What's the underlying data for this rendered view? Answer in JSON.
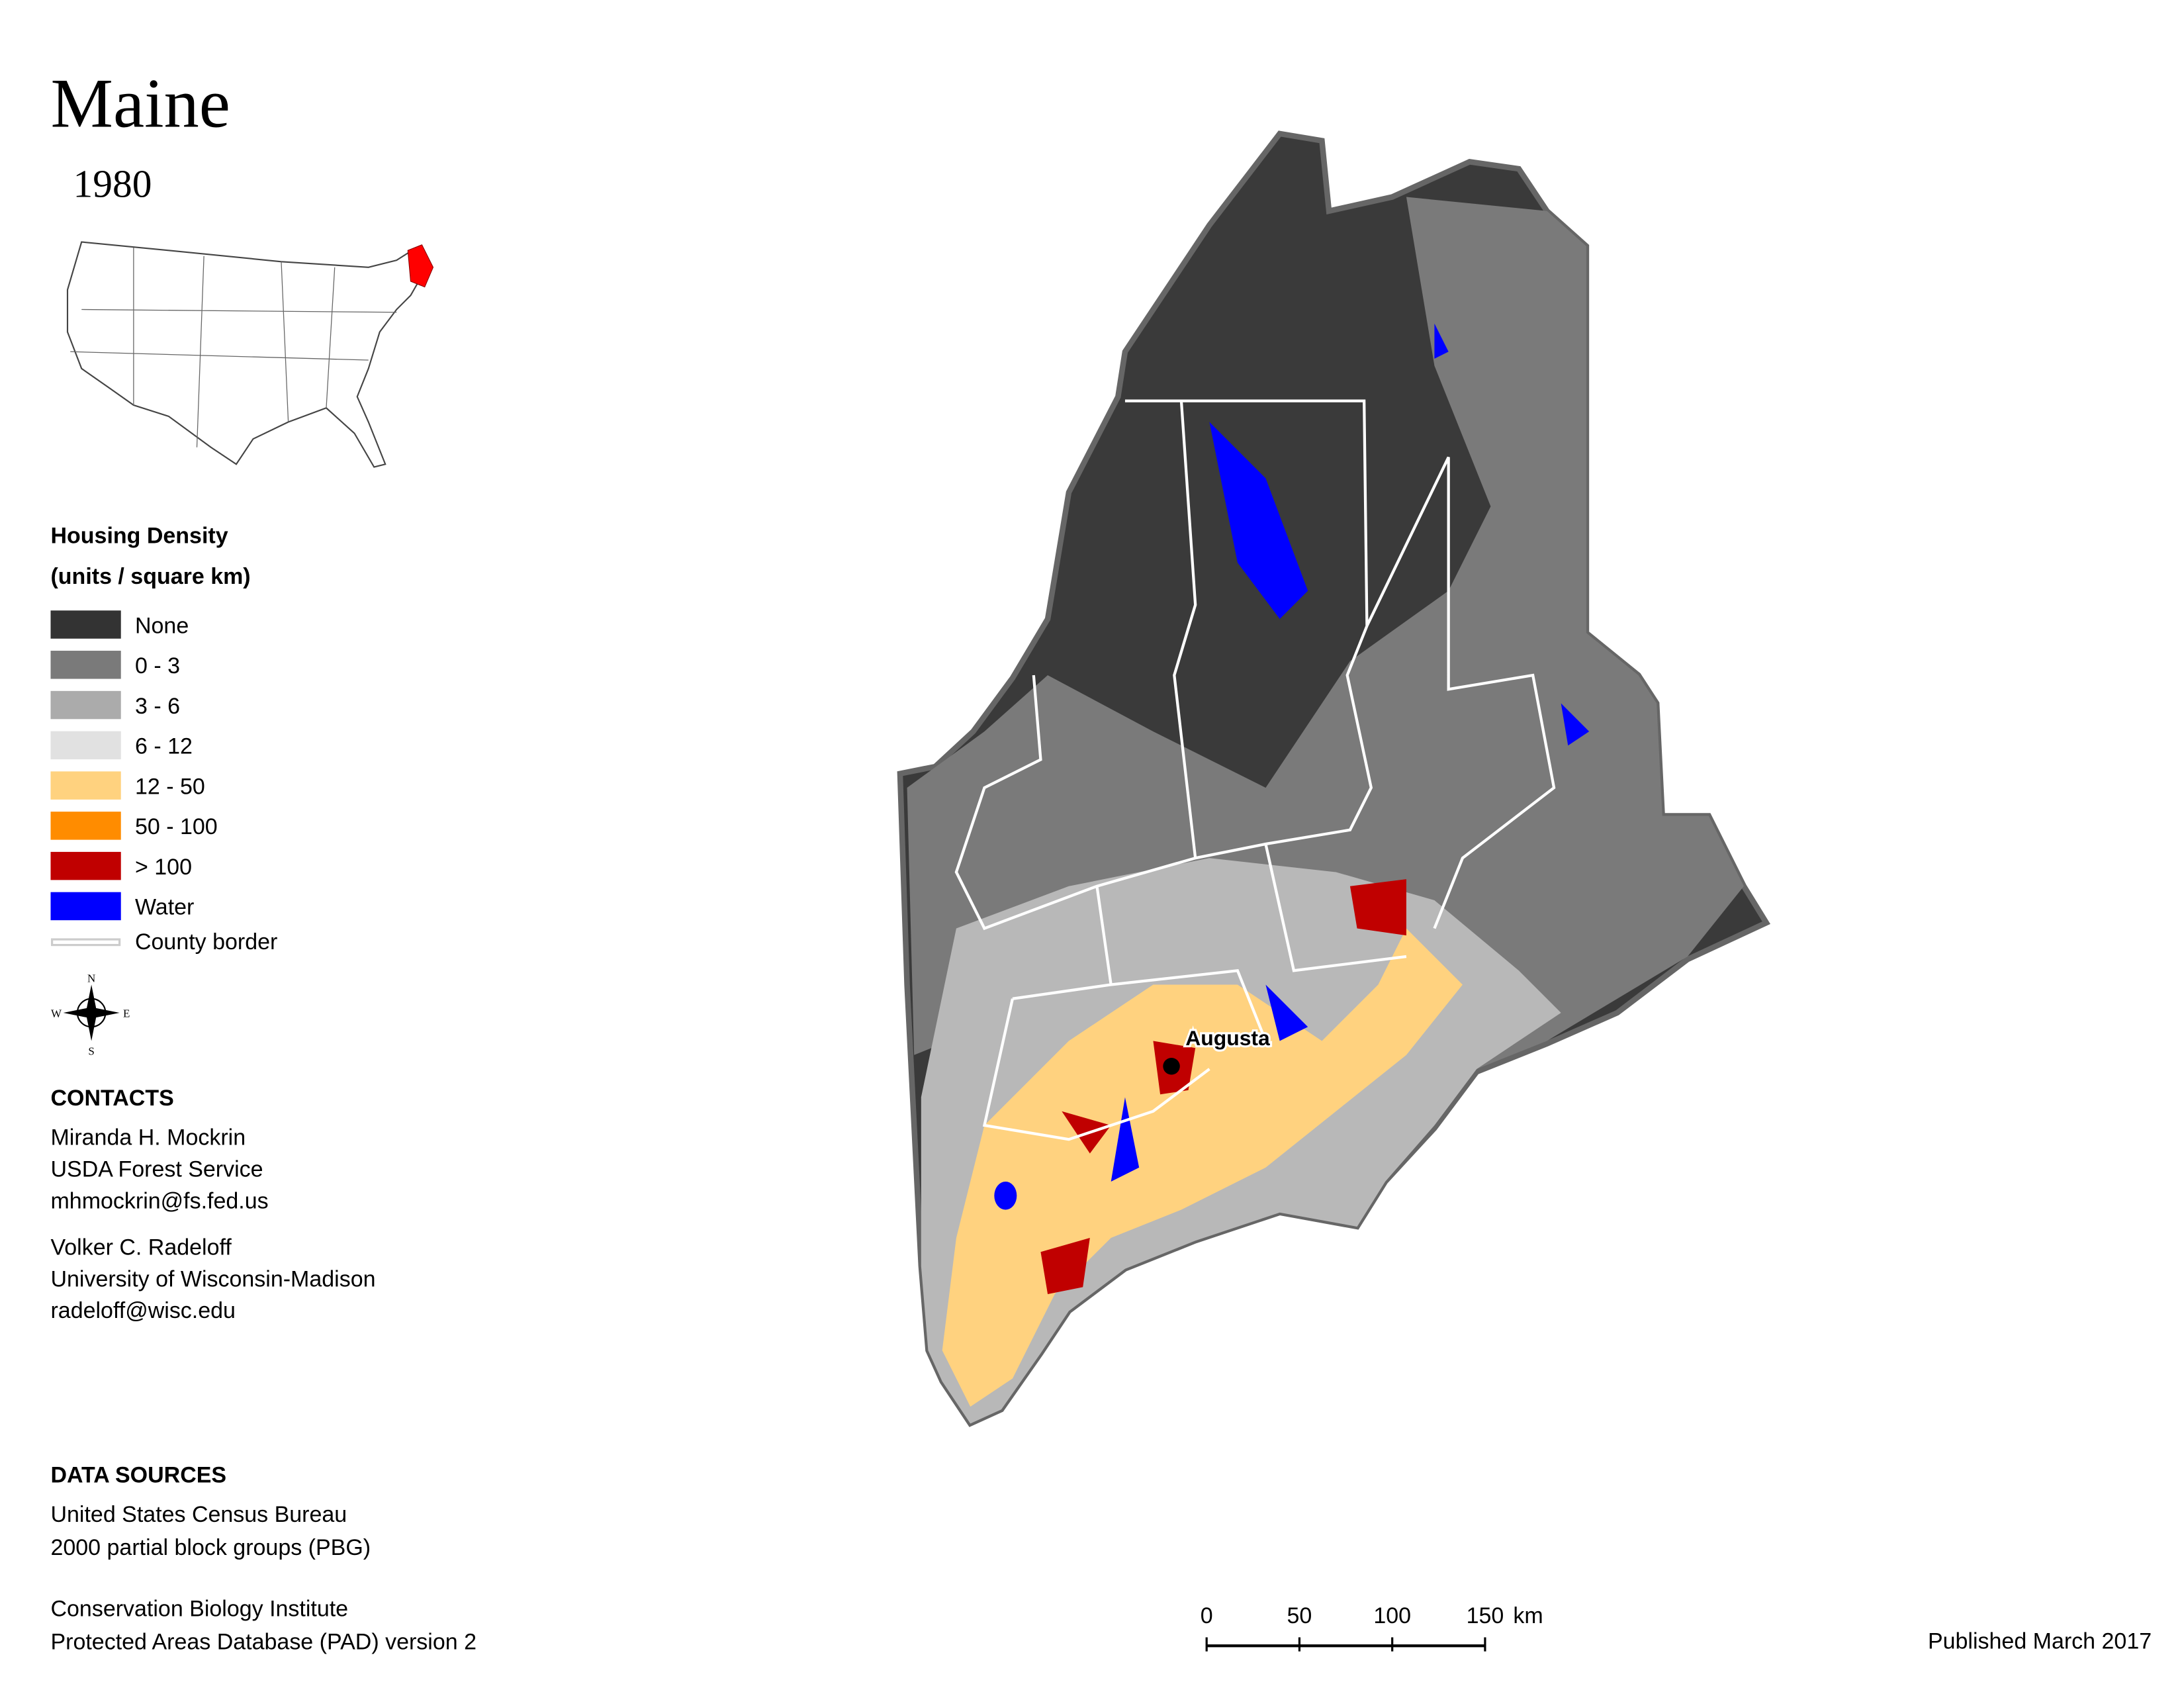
{
  "header": {
    "title": "Maine",
    "year": "1980"
  },
  "legend": {
    "title": "Housing Density",
    "subtitle": "(units / square km)",
    "items": [
      {
        "label": "None",
        "color": "#333333"
      },
      {
        "label": "0 - 3",
        "color": "#7a7a7a"
      },
      {
        "label": "3 - 6",
        "color": "#ababab"
      },
      {
        "label": "6 - 12",
        "color": "#e1e1e1"
      },
      {
        "label": "12 - 50",
        "color": "#ffd27f"
      },
      {
        "label": "50 - 100",
        "color": "#ff8c00"
      },
      {
        "label": "> 100",
        "color": "#c00000"
      },
      {
        "label": "Water",
        "color": "#0000ff"
      }
    ],
    "county_border": {
      "label": "County border",
      "color": "#cccccc"
    }
  },
  "compass": {
    "n": "N",
    "s": "S",
    "e": "E",
    "w": "W"
  },
  "map": {
    "city": "Augusta"
  },
  "contacts": {
    "title": "CONTACTS",
    "people": [
      [
        "Miranda H. Mockrin",
        "USDA Forest Service",
        "mhmockrin@fs.fed.us"
      ],
      [
        "Volker C. Radeloff",
        "University of Wisconsin-Madison",
        "radeloff@wisc.edu"
      ]
    ]
  },
  "data_sources": {
    "title": "DATA SOURCES",
    "lines": [
      [
        "United States Census Bureau",
        "2000 partial block groups (PBG)"
      ],
      [
        "Conservation Biology Institute",
        "Protected Areas Database (PAD) version 2"
      ]
    ]
  },
  "scale_bar": {
    "ticks": [
      0,
      50,
      100,
      150
    ],
    "unit": "km"
  },
  "footer": {
    "published": "Published March 2017"
  }
}
